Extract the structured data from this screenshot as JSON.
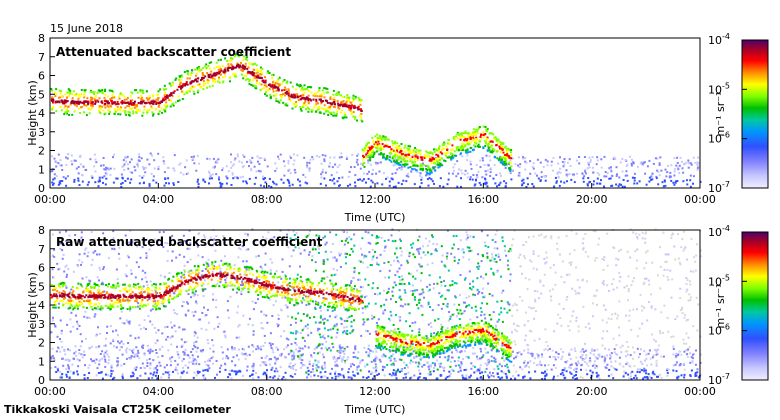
{
  "date": "15 June 2018",
  "footer": "Tikkakoski Vaisala CT25K ceilometer",
  "panels": [
    {
      "title": "Attenuated backscatter coefficient",
      "kind": "filtered"
    },
    {
      "title": "Raw attenuated backscatter coefficient",
      "kind": "raw"
    }
  ],
  "x_axis": {
    "label": "Time (UTC)",
    "ticks": [
      "00:00",
      "04:00",
      "08:00",
      "12:00",
      "16:00",
      "20:00",
      "00:00"
    ],
    "range_hours": [
      0,
      24
    ]
  },
  "y_axis": {
    "label": "Height (km)",
    "ticks": [
      "0",
      "1",
      "2",
      "3",
      "4",
      "5",
      "6",
      "7",
      "8"
    ],
    "range_km": [
      0,
      8
    ]
  },
  "colorbar": {
    "label": "m⁻¹ sr⁻¹",
    "ticks": [
      {
        "base": "10",
        "exp": "-4"
      },
      {
        "base": "10",
        "exp": "-5"
      },
      {
        "base": "10",
        "exp": "-6"
      },
      {
        "base": "10",
        "exp": "-7"
      }
    ],
    "colors": [
      "#4b006e",
      "#a0002a",
      "#ff0000",
      "#ff8c00",
      "#ffff00",
      "#80ff00",
      "#00c000",
      "#00c8a0",
      "#0096ff",
      "#3050ff",
      "#8080ff",
      "#c8c8ff",
      "#eeeeff"
    ]
  },
  "chart_data": [
    {
      "type": "heatmap",
      "title": "Attenuated backscatter coefficient",
      "xlabel": "Time (UTC)",
      "ylabel": "Height (km)",
      "xlim": [
        0,
        24
      ],
      "ylim": [
        0,
        8
      ],
      "color_scale": "log10 backscatter, 1e-7 to 1e-4 m-1 sr-1",
      "cloud_layer_height_km": {
        "hours": [
          0,
          1,
          2,
          3,
          4,
          5,
          6,
          7,
          8,
          9,
          10,
          11,
          11.5
        ],
        "height": [
          4.6,
          4.5,
          4.5,
          4.5,
          4.5,
          5.5,
          6.0,
          6.5,
          5.5,
          4.8,
          4.6,
          4.3,
          4.1
        ]
      },
      "low_cloud_height_km": {
        "hours": [
          11.5,
          12,
          13,
          14,
          15,
          16,
          17
        ],
        "height": [
          1.6,
          2.4,
          1.8,
          1.4,
          2.4,
          2.8,
          1.5
        ]
      },
      "boundary_layer_top_km": 1.8
    },
    {
      "type": "heatmap",
      "title": "Raw attenuated backscatter coefficient",
      "xlabel": "Time (UTC)",
      "ylabel": "Height (km)",
      "xlim": [
        0,
        24
      ],
      "ylim": [
        0,
        8
      ],
      "color_scale": "log10 backscatter, 1e-7 to 1e-4 m-1 sr-1",
      "cloud_layer_height_km": {
        "hours": [
          0,
          1,
          2,
          3,
          4,
          5,
          6,
          7,
          8,
          9,
          10,
          11,
          11.5
        ],
        "height": [
          4.5,
          4.4,
          4.4,
          4.4,
          4.4,
          5.2,
          5.6,
          5.4,
          5.0,
          4.7,
          4.6,
          4.3,
          4.2
        ]
      },
      "low_cloud_height_km": {
        "hours": [
          12,
          13,
          14,
          15,
          16,
          17
        ],
        "height": [
          2.4,
          2.0,
          1.8,
          2.4,
          2.6,
          1.6
        ]
      },
      "boundary_layer_top_km": 1.8
    }
  ]
}
